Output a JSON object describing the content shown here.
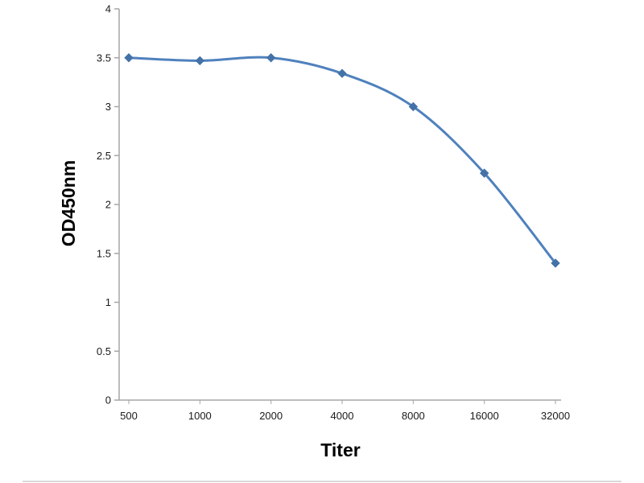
{
  "chart_data": {
    "type": "line",
    "title": "",
    "xlabel": "Titer",
    "ylabel": "OD450nm",
    "categories": [
      "500",
      "1000",
      "2000",
      "4000",
      "8000",
      "16000",
      "32000"
    ],
    "series": [
      {
        "name": "OD450nm",
        "values": [
          3.5,
          3.47,
          3.5,
          3.34,
          3.0,
          2.32,
          1.4
        ]
      }
    ],
    "ylim": [
      0,
      4
    ],
    "yticks": [
      0,
      0.5,
      1,
      1.5,
      2,
      2.5,
      3,
      3.5,
      4
    ],
    "grid": false,
    "legend_position": "none",
    "line_color": "#4f81bd",
    "marker_color": "#4472a8",
    "marker_shape": "diamond",
    "axis_color": "#a6a6a6",
    "tick_label_color": "#1a1a1a"
  }
}
